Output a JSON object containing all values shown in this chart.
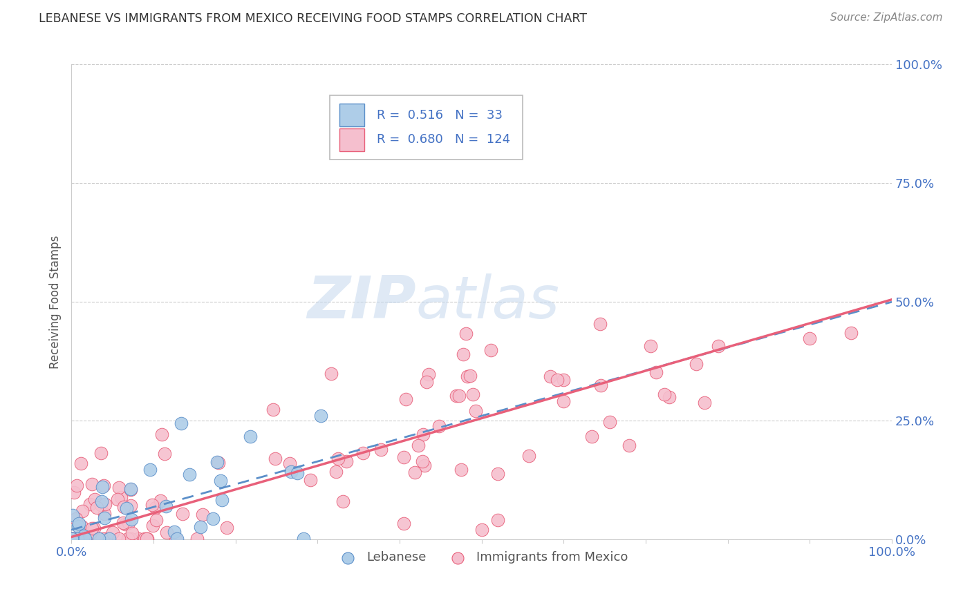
{
  "title": "LEBANESE VS IMMIGRANTS FROM MEXICO RECEIVING FOOD STAMPS CORRELATION CHART",
  "source": "Source: ZipAtlas.com",
  "ylabel": "Receiving Food Stamps",
  "watermark": "ZIPatlas",
  "legend_entries": [
    {
      "label": "Lebanese",
      "R": 0.516,
      "N": 33,
      "color": "#aecde8",
      "edge_color": "#5b8fc9",
      "line_color": "#5b8fc9",
      "line_style": "dashed"
    },
    {
      "label": "Immigrants from Mexico",
      "R": 0.68,
      "N": 124,
      "color": "#f5bfce",
      "edge_color": "#e8607a",
      "line_color": "#e8607a",
      "line_style": "solid"
    }
  ],
  "xlim": [
    0.0,
    1.0
  ],
  "ylim": [
    0.0,
    1.0
  ],
  "yticks": [
    0.0,
    0.25,
    0.5,
    0.75,
    1.0
  ],
  "xticks": [
    0.0,
    0.1,
    0.2,
    0.3,
    0.4,
    0.5,
    0.6,
    0.7,
    0.8,
    0.9,
    1.0
  ],
  "grid_color": "#cccccc",
  "background_color": "#ffffff",
  "tick_label_color": "#4472c4",
  "title_color": "#333333",
  "leb_line_slope": 0.48,
  "leb_line_intercept": 0.02,
  "mex_line_slope": 0.5,
  "mex_line_intercept": 0.005,
  "seed": 7
}
